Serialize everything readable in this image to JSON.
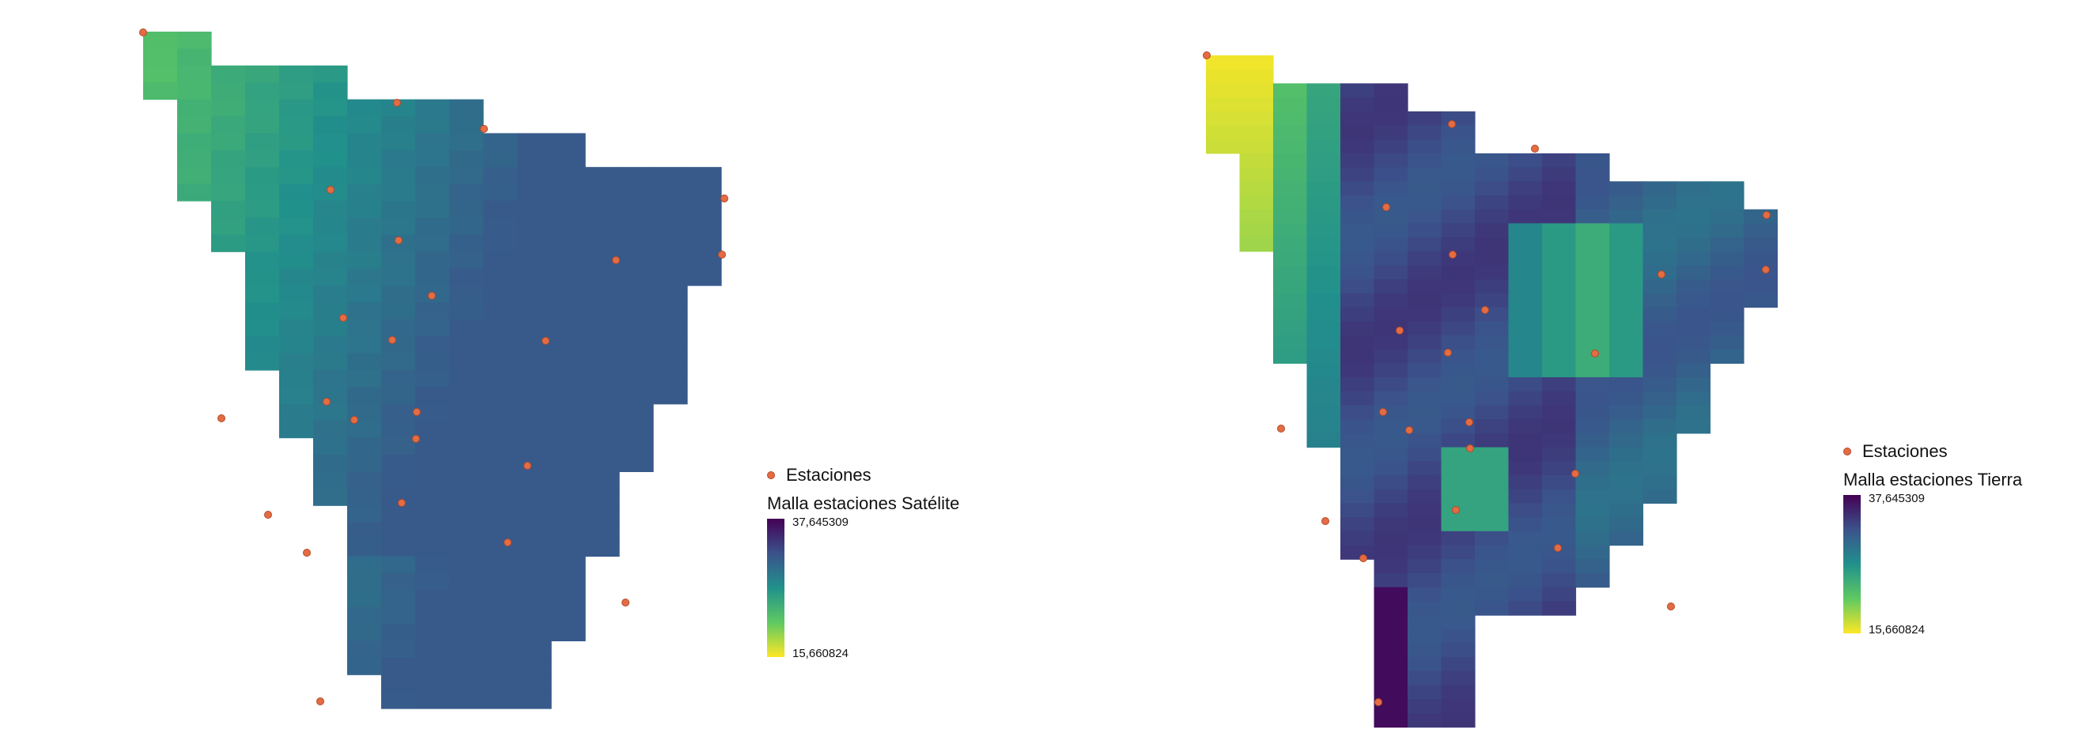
{
  "maps": [
    {
      "id": "satelite",
      "legend": {
        "stations_label": "Estaciones",
        "grid_title": "Malla estaciones Satélite",
        "max_label": "37,645309",
        "min_label": "15,660824"
      }
    },
    {
      "id": "tierra",
      "legend": {
        "stations_label": "Estaciones",
        "grid_title": "Malla estaciones Tierra",
        "max_label": "37,645309",
        "min_label": "15,660824"
      }
    }
  ],
  "colors": {
    "station_fill": "#e46c44",
    "station_stroke": "#b24a28",
    "ramp": [
      "#440154",
      "#3b528b",
      "#21918c",
      "#5ec962",
      "#fde725"
    ]
  }
}
